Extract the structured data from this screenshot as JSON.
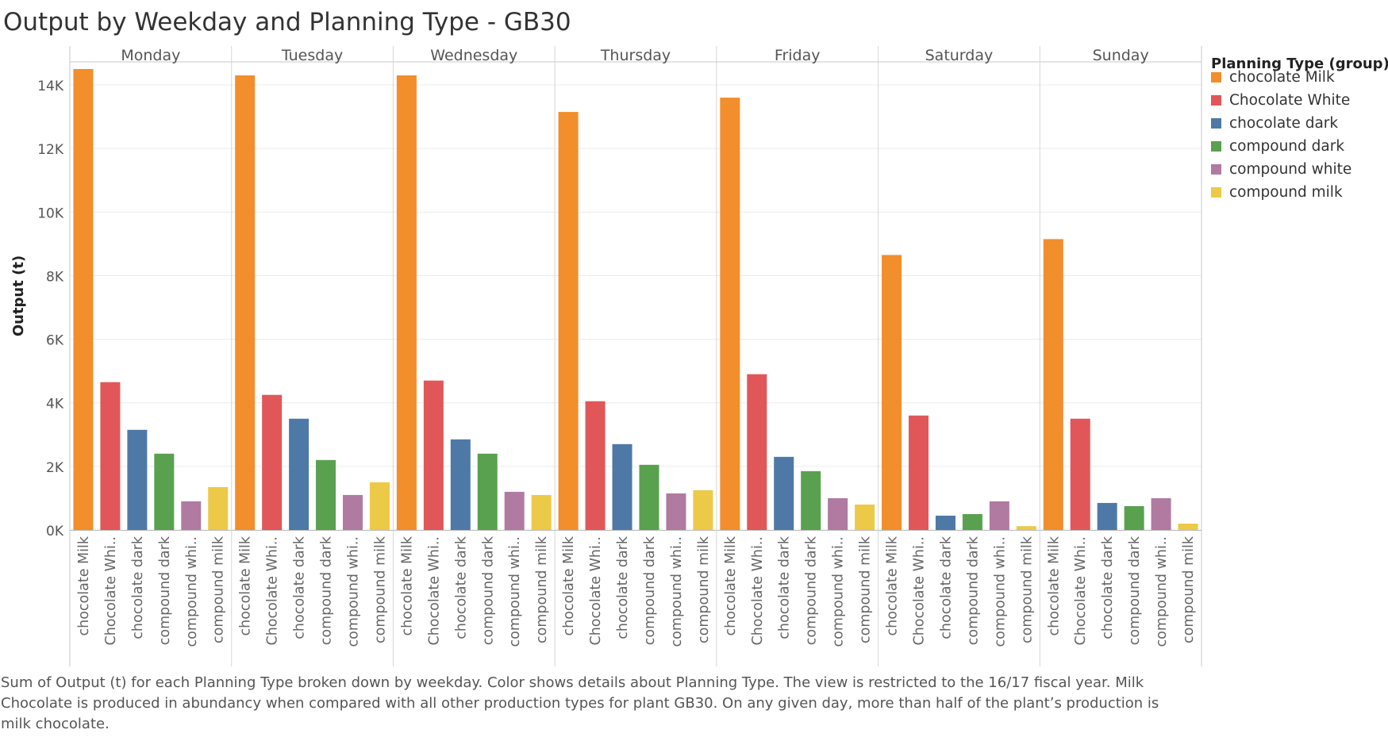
{
  "title": "Output by Weekday and Planning Type - GB30",
  "legend": {
    "title": "Planning Type (group)",
    "items": [
      {
        "label": "chocolate Milk",
        "color": "#f28e2b"
      },
      {
        "label": "Chocolate White",
        "color": "#e15759"
      },
      {
        "label": "chocolate dark",
        "color": "#4e79a7"
      },
      {
        "label": "compound dark",
        "color": "#59a14f"
      },
      {
        "label": "compound white",
        "color": "#b07aa1"
      },
      {
        "label": "compound milk",
        "color": "#edc948"
      }
    ]
  },
  "caption": "Sum of Output (t) for each Planning Type broken down by weekday.  Color shows details about Planning Type. The view is restricted to the 16/17 fiscal year. Milk Chocolate is produced in abundancy when compared with all other production types for plant GB30. On any given day, more than half of the plant’s production is milk chocolate.",
  "chart_data": {
    "type": "bar",
    "ylabel": "Output (t)",
    "xlabel": "",
    "ylim": [
      0,
      14600
    ],
    "yticks": [
      0,
      2000,
      4000,
      6000,
      8000,
      10000,
      12000,
      14000
    ],
    "ytick_labels": [
      "0K",
      "2K",
      "4K",
      "6K",
      "8K",
      "10K",
      "12K",
      "14K"
    ],
    "grid": true,
    "legend_position": "right",
    "panels": [
      "Monday",
      "Tuesday",
      "Wednesday",
      "Thursday",
      "Friday",
      "Saturday",
      "Sunday"
    ],
    "categories": [
      "chocolate Milk",
      "Chocolate White",
      "chocolate dark",
      "compound dark",
      "compound white",
      "compound milk"
    ],
    "category_tick_labels": [
      "chocolate Milk",
      "Chocolate Whi..",
      "chocolate dark",
      "compound dark",
      "compound whi..",
      "compound milk"
    ],
    "series": [
      {
        "name": "Monday",
        "values": [
          14500,
          4650,
          3150,
          2400,
          900,
          1350
        ]
      },
      {
        "name": "Tuesday",
        "values": [
          14300,
          4250,
          3500,
          2200,
          1100,
          1500
        ]
      },
      {
        "name": "Wednesday",
        "values": [
          14300,
          4700,
          2850,
          2400,
          1200,
          1100
        ]
      },
      {
        "name": "Thursday",
        "values": [
          13150,
          4050,
          2700,
          2050,
          1150,
          1250
        ]
      },
      {
        "name": "Friday",
        "values": [
          13600,
          4900,
          2300,
          1850,
          1000,
          800
        ]
      },
      {
        "name": "Saturday",
        "values": [
          8650,
          3600,
          450,
          500,
          900,
          120
        ]
      },
      {
        "name": "Sunday",
        "values": [
          9150,
          3500,
          850,
          750,
          1000,
          200
        ]
      }
    ]
  }
}
